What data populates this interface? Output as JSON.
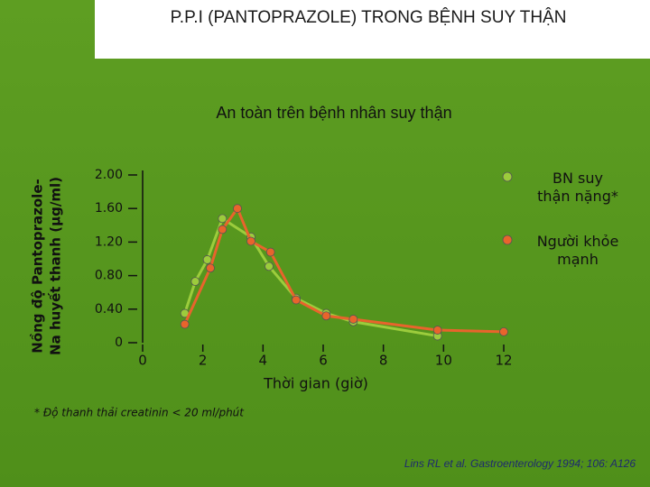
{
  "header": {
    "title": "P.P.I (PANTOPRAZOLE) TRONG BỆNH SUY THẬN"
  },
  "chart_data": {
    "type": "line",
    "title": "An toàn trên bệnh nhân suy thận",
    "y_label": [
      "Nồng độ Pantoprazole-",
      "Na huyết thanh (µg/ml)"
    ],
    "x_label": "Thời gian (giờ)",
    "xlim": [
      0,
      12
    ],
    "xticks": [
      0,
      2,
      4,
      6,
      8,
      10,
      12
    ],
    "ylim": [
      0,
      2
    ],
    "yticks": [
      0,
      {
        "value": 0.4,
        "label": "0.40"
      },
      {
        "value": 0.8,
        "label": "0.80"
      },
      {
        "value": 1.2,
        "label": "1.20"
      },
      {
        "value": 1.6,
        "label": "1.60"
      },
      {
        "value": 2,
        "label": "2.00"
      }
    ],
    "series": [
      {
        "name": "BN suy thận nặng*",
        "color": "#9ccc3c",
        "x": [
          1.4,
          1.75,
          2.15,
          2.65,
          3.6,
          4.2,
          5.1,
          6.1,
          7.0,
          9.8
        ],
        "values": [
          0.35,
          0.73,
          0.99,
          1.48,
          1.26,
          0.91,
          0.53,
          0.35,
          0.25,
          0.08
        ]
      },
      {
        "name": "Người khỏe mạnh",
        "color": "#e8642c",
        "x": [
          1.4,
          2.25,
          2.65,
          3.15,
          3.6,
          4.25,
          5.1,
          6.1,
          7.0,
          9.8,
          12
        ],
        "values": [
          0.22,
          0.89,
          1.35,
          1.6,
          1.21,
          1.08,
          0.51,
          0.32,
          0.28,
          0.15,
          0.13
        ]
      }
    ]
  },
  "footnote": "* Độ thanh thải creatinin < 20 ml/phút",
  "citation": "Lins RL et al. Gastroenterology 1994; 106: A126"
}
